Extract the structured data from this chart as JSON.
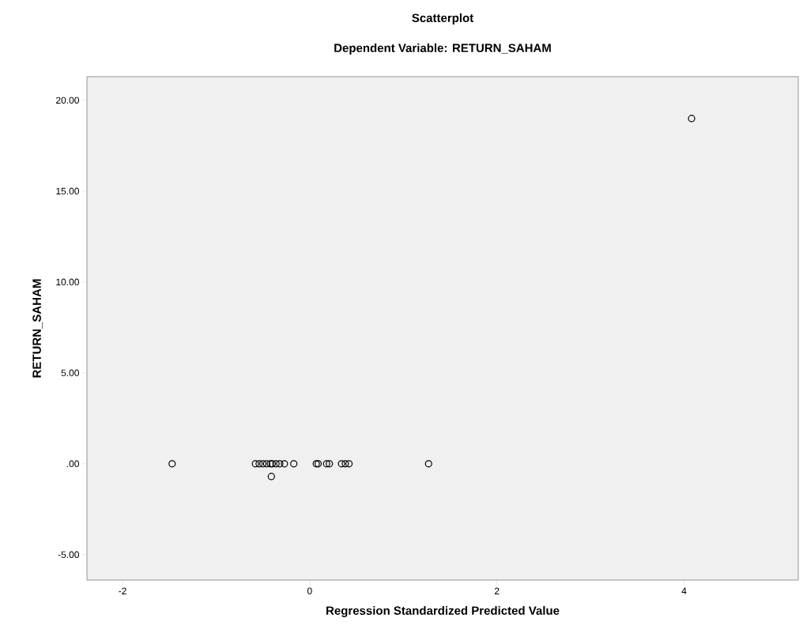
{
  "chart_data": {
    "type": "scatter",
    "title": "Scatterplot",
    "subtitle": "Dependent Variable: RETURN_SAHAM",
    "xlabel": "Regression Standardized Predicted Value",
    "ylabel": "RETURN_SAHAM",
    "x": [
      -1.47,
      -0.58,
      -0.54,
      -0.5,
      -0.46,
      -0.42,
      -0.4,
      -0.36,
      -0.32,
      -0.27,
      -0.17,
      -0.41,
      0.07,
      0.09,
      0.18,
      0.21,
      0.34,
      0.38,
      0.42,
      1.27,
      4.08
    ],
    "series": [
      {
        "color": "#000000",
        "values": [
          0,
          0,
          0,
          0,
          0,
          0,
          0,
          0,
          0,
          0,
          0,
          -0.7,
          0,
          0,
          0,
          0,
          0,
          0,
          0,
          0,
          19.0
        ]
      }
    ],
    "xlim": [
      -2.38,
      5.22
    ],
    "ylim": [
      -6.4,
      21.3
    ],
    "xticks": [
      -2,
      0,
      2,
      4
    ],
    "yticks": [
      {
        "value": -5,
        "label": "-5.00"
      },
      {
        "value": 0,
        "label": ".00"
      },
      {
        "value": 5,
        "label": "5.00"
      },
      {
        "value": 10,
        "label": "10.00"
      },
      {
        "value": 15,
        "label": "15.00"
      },
      {
        "value": 20,
        "label": "20.00"
      }
    ],
    "marker": "circle",
    "grid": false
  }
}
